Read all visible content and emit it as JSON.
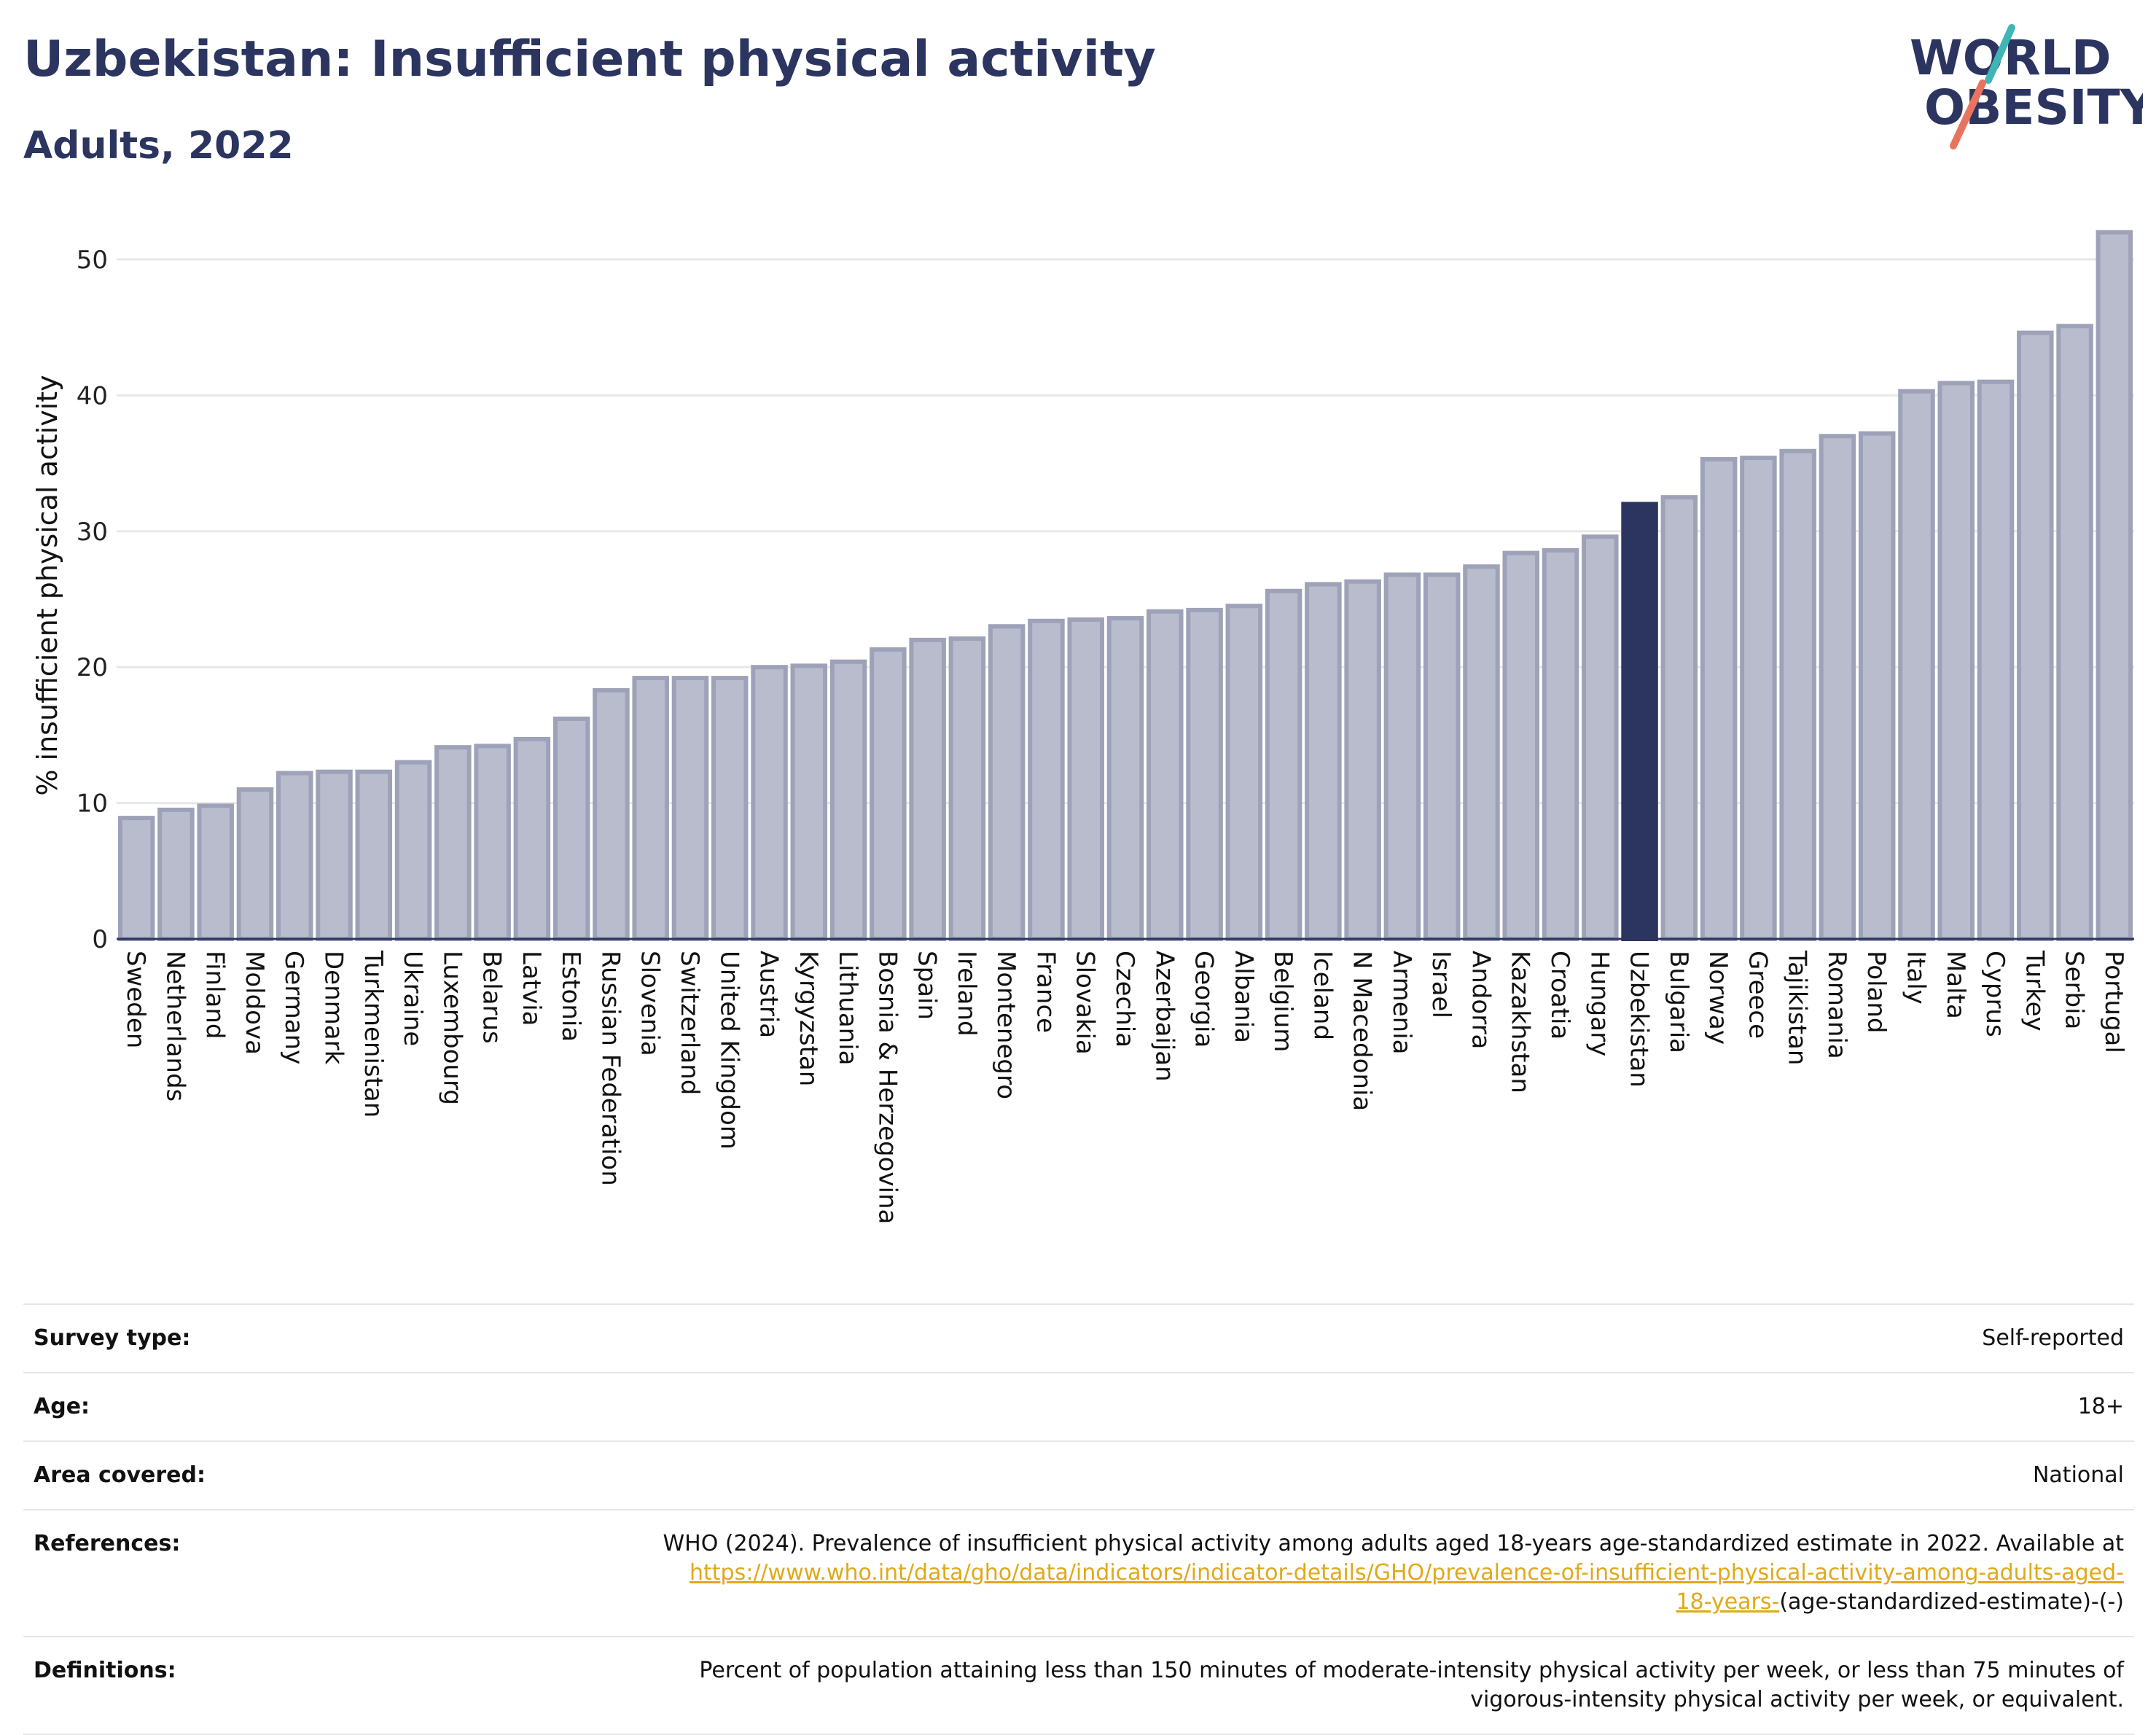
{
  "header": {
    "title": "Uzbekistan: Insufficient physical activity",
    "subtitle": "Adults, 2022"
  },
  "logo": {
    "line1": "WORLD",
    "line2": "OBESITY"
  },
  "colors": {
    "bar_default": "#b9bccc",
    "bar_border": "#9da2b8",
    "bar_highlight": "#2b3560",
    "text_primary": "#2b3560",
    "link": "#e0a91a",
    "logo_teal": "#3fb5b5",
    "logo_coral": "#e8745f"
  },
  "chart_data": {
    "type": "bar",
    "ylabel": "% insufficient physical activity",
    "ylim": [
      0,
      53
    ],
    "yticks": [
      0,
      10,
      20,
      30,
      40,
      50
    ],
    "grid": true,
    "highlight": "Uzbekistan",
    "categories": [
      "Sweden",
      "Netherlands",
      "Finland",
      "Moldova",
      "Germany",
      "Denmark",
      "Turkmenistan",
      "Ukraine",
      "Luxembourg",
      "Belarus",
      "Latvia",
      "Estonia",
      "Russian Federation",
      "Slovenia",
      "Switzerland",
      "United Kingdom",
      "Austria",
      "Kyrgyzstan",
      "Lithuania",
      "Bosnia & Herzegovina",
      "Spain",
      "Ireland",
      "Montenegro",
      "France",
      "Slovakia",
      "Czechia",
      "Azerbaijan",
      "Georgia",
      "Albania",
      "Belgium",
      "Iceland",
      "N Macedonia",
      "Armenia",
      "Israel",
      "Andorra",
      "Kazakhstan",
      "Croatia",
      "Hungary",
      "Uzbekistan",
      "Bulgaria",
      "Norway",
      "Greece",
      "Tajikistan",
      "Romania",
      "Poland",
      "Italy",
      "Malta",
      "Cyprus",
      "Turkey",
      "Serbia",
      "Portugal"
    ],
    "values": [
      8.9,
      9.5,
      9.8,
      11.0,
      12.2,
      12.3,
      12.3,
      13.0,
      14.1,
      14.2,
      14.7,
      16.2,
      18.3,
      19.2,
      19.2,
      19.2,
      20.0,
      20.1,
      20.4,
      21.3,
      22.0,
      22.1,
      23.0,
      23.4,
      23.5,
      23.6,
      24.1,
      24.2,
      24.5,
      25.6,
      26.1,
      26.3,
      26.8,
      26.8,
      27.4,
      28.4,
      28.6,
      29.6,
      32.0,
      32.5,
      35.3,
      35.4,
      35.9,
      37.0,
      37.2,
      40.3,
      40.9,
      41.0,
      44.6,
      45.1,
      52.0
    ]
  },
  "info": {
    "survey_type_label": "Survey type:",
    "survey_type_value": "Self-reported",
    "age_label": "Age:",
    "age_value": "18+",
    "area_label": "Area covered:",
    "area_value": "National",
    "references_label": "References:",
    "references_text": "WHO (2024). Prevalence of insufficient physical activity among adults aged 18-years age-standardized estimate in 2022. Available at",
    "references_link_line1": "https://www.who.int/data/gho/data/indicators/indicator-details/GHO/prevalence-of-insufficient-physical-activity-among-adults-aged-",
    "references_link_line2": "18-years-",
    "references_tail": "(age-standardized-estimate)-(-)",
    "definitions_label": "Definitions:",
    "definitions_line1": "Percent of population attaining less than 150 minutes of moderate-intensity physical activity per week, or less than 75 minutes of",
    "definitions_line2": "vigorous-intensity physical activity per week, or equivalent."
  }
}
